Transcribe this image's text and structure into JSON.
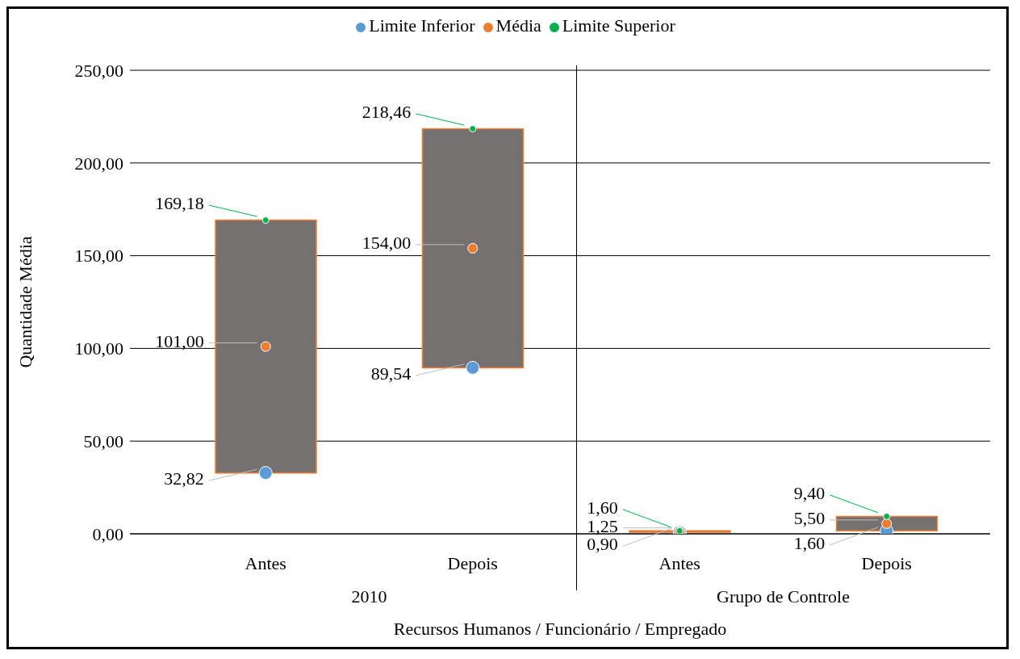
{
  "chart_data": {
    "type": "bar",
    "categories": [
      "Antes",
      "Depois",
      "Antes",
      "Depois"
    ],
    "xlabel": "Recursos Humanos / Funcionário / Empregado",
    "ylabel": "Quantidade Média",
    "annotations": [
      "2010",
      "Grupo de Controle"
    ],
    "ylim": [
      0,
      250
    ],
    "yticks": [
      {
        "value": 0,
        "label": "0,00"
      },
      {
        "value": 50,
        "label": "50,00"
      },
      {
        "value": 100,
        "label": "100,00"
      },
      {
        "value": 150,
        "label": "150,00"
      },
      {
        "value": 200,
        "label": "200,00"
      },
      {
        "value": 250,
        "label": "250,00"
      }
    ],
    "grid": "y",
    "legend": "top",
    "series": [
      {
        "color": "#767171",
        "base": [
          32.82,
          89.54,
          0.9,
          1.6
        ],
        "values": [
          136.36,
          128.92,
          0.7,
          7.8
        ]
      },
      {
        "type": "scatter",
        "name": "Limite Inferior",
        "color": "#5b9bd5",
        "values": [
          32.82,
          89.54,
          0.9,
          1.6
        ],
        "value_labels": [
          "32,82",
          "89,54",
          "0,90",
          "1,60"
        ]
      },
      {
        "type": "scatter",
        "name": "Média",
        "color": "#ed7d31",
        "values": [
          101,
          154,
          1.25,
          5.5
        ],
        "value_labels": [
          "101,00",
          "154,00",
          "1,25",
          "5,50"
        ]
      },
      {
        "type": "scatter",
        "name": "Limite Superior",
        "color": "#00b050",
        "values": [
          169.18,
          218.46,
          1.6,
          9.4
        ],
        "value_labels": [
          "169,18",
          "218,46",
          "1,60",
          "9,40"
        ]
      }
    ]
  }
}
